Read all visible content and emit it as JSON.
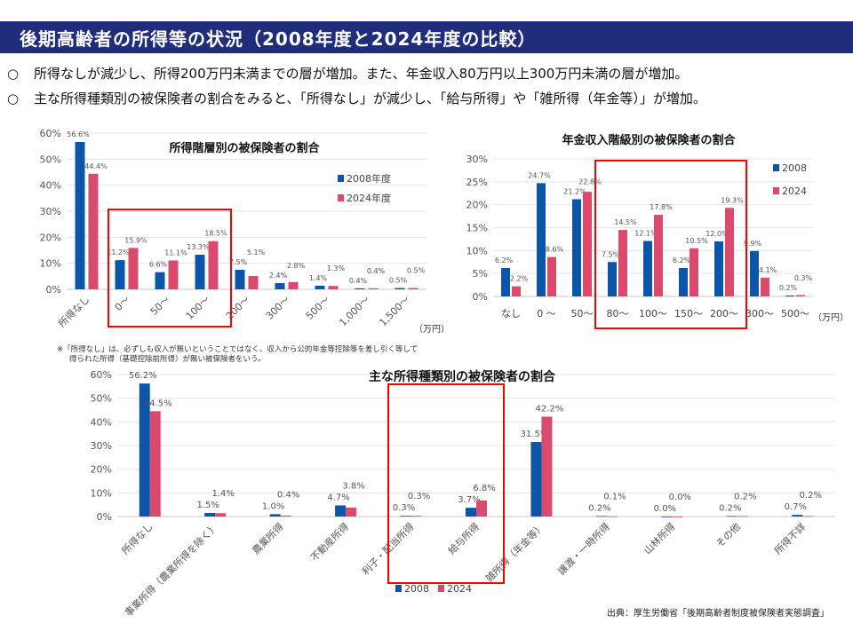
{
  "header": {
    "title": "後期高齢者の所得等の状況（2008年度と2024年度の比較）"
  },
  "bullets": [
    {
      "marker": "○",
      "text": "所得なしが減少し、所得200万円未満までの層が増加。また、年金収入80万円以上300万円未満の層が増加。"
    },
    {
      "marker": "○",
      "text": "主な所得種類別の被保険者の割合をみると、「所得なし」が減少し、「給与所得」や「雑所得（年金等）」が増加。"
    }
  ],
  "note": {
    "line1": "※「所得なし」は、必ずしも収入が無いということではなく、収入から公的年金等控除等を差し引く等して",
    "line2": "得られた所得（基礎控除前所得）が無い被保険者をいう。"
  },
  "source": "出典：厚生労働省「後期高齢者制度被保険者実態調査」",
  "colors": {
    "s2008": "#0b56a8",
    "s2024": "#d94a6c",
    "highlight": "#ff0000",
    "title_bar": "#1f2d7a"
  },
  "chart_data": [
    {
      "type": "bar",
      "title": "所得階層別の被保険者の割合",
      "categories": [
        "所得なし",
        "0～",
        "50～",
        "100～",
        "200～",
        "300～",
        "500～",
        "1,000～",
        "1,500～"
      ],
      "series": [
        {
          "name": "2008年度",
          "values": [
            56.6,
            11.2,
            6.6,
            13.3,
            7.5,
            2.4,
            1.4,
            0.4,
            0.5
          ],
          "labels": [
            "56.6%",
            "11.2%",
            "6.6%",
            "13.3%",
            "7.5%",
            "2.4%",
            "1.4%",
            "0.4%",
            "0.5%"
          ]
        },
        {
          "name": "2024年度",
          "values": [
            44.4,
            15.9,
            11.1,
            18.5,
            5.1,
            2.8,
            1.3,
            0.4,
            0.5
          ],
          "labels": [
            "44.4%",
            "15.9%",
            "11.1%",
            "18.5%",
            "5.1%",
            "2.8%",
            "1.3%",
            "0.4%",
            "0.5%"
          ]
        }
      ],
      "yticks": [
        "0%",
        "10%",
        "20%",
        "30%",
        "40%",
        "50%",
        "60%"
      ],
      "ylim": [
        0,
        60
      ],
      "unit": "（万円）",
      "highlight_categories": [
        "0～",
        "100～"
      ],
      "legend": "right"
    },
    {
      "type": "bar",
      "title": "年金収入階級別の被保険者の割合",
      "categories": [
        "なし",
        "0 ～",
        "50～",
        "80～",
        "100～",
        "150～",
        "200～",
        "300～",
        "500～"
      ],
      "series": [
        {
          "name": "2008",
          "values": [
            6.2,
            24.7,
            21.2,
            7.5,
            12.1,
            6.2,
            12.0,
            9.9,
            0.2
          ],
          "labels": [
            "6.2%",
            "24.7%",
            "21.2%",
            "7.5%",
            "12.1%",
            "6.2%",
            "12.0%",
            "9.9%",
            "0.2%"
          ]
        },
        {
          "name": "2024",
          "values": [
            2.2,
            8.6,
            22.8,
            14.5,
            17.8,
            10.5,
            19.3,
            4.1,
            0.3
          ],
          "labels": [
            "2.2%",
            "8.6%",
            "22.8%",
            "14.5%",
            "17.8%",
            "10.5%",
            "19.3%",
            "4.1%",
            "0.3%"
          ]
        }
      ],
      "yticks": [
        "0%",
        "5%",
        "10%",
        "15%",
        "20%",
        "25%",
        "30%"
      ],
      "ylim": [
        0,
        30
      ],
      "unit": "（万円）",
      "highlight_categories": [
        "80～",
        "200～"
      ],
      "legend": "right"
    },
    {
      "type": "bar",
      "title": "主な所得種類別の被保険者の割合",
      "categories": [
        "所得なし",
        "事業所得（農業所得を除く）",
        "農業所得",
        "不動産所得",
        "利子・配当所得",
        "給与所得",
        "雑所得（年金等）",
        "譲渡・一時所得",
        "山林所得",
        "その他",
        "所得不詳"
      ],
      "series": [
        {
          "name": "2008",
          "values": [
            56.2,
            1.5,
            1.0,
            4.7,
            0.3,
            3.7,
            31.5,
            0.2,
            0.0,
            0.2,
            0.7
          ],
          "labels": [
            "56.2%",
            "1.5%",
            "1.0%",
            "4.7%",
            "0.3%",
            "3.7%",
            "31.5%",
            "0.2%",
            "0.0%",
            "0.2%",
            "0.7%"
          ]
        },
        {
          "name": "2024",
          "values": [
            44.5,
            1.4,
            0.4,
            3.8,
            0.3,
            6.8,
            42.2,
            0.1,
            0.0,
            0.2,
            0.2
          ],
          "labels": [
            "44.5%",
            "1.4%",
            "0.4%",
            "3.8%",
            "0.3%",
            "6.8%",
            "42.2%",
            "0.1%",
            "0.0%",
            "0.2%",
            "0.2%"
          ]
        }
      ],
      "yticks": [
        "0%",
        "10%",
        "20%",
        "30%",
        "40%",
        "50%",
        "60%"
      ],
      "ylim": [
        0,
        60
      ],
      "highlight_categories": [
        "給与所得",
        "雑所得（年金等）"
      ],
      "legend": "bottom"
    }
  ]
}
